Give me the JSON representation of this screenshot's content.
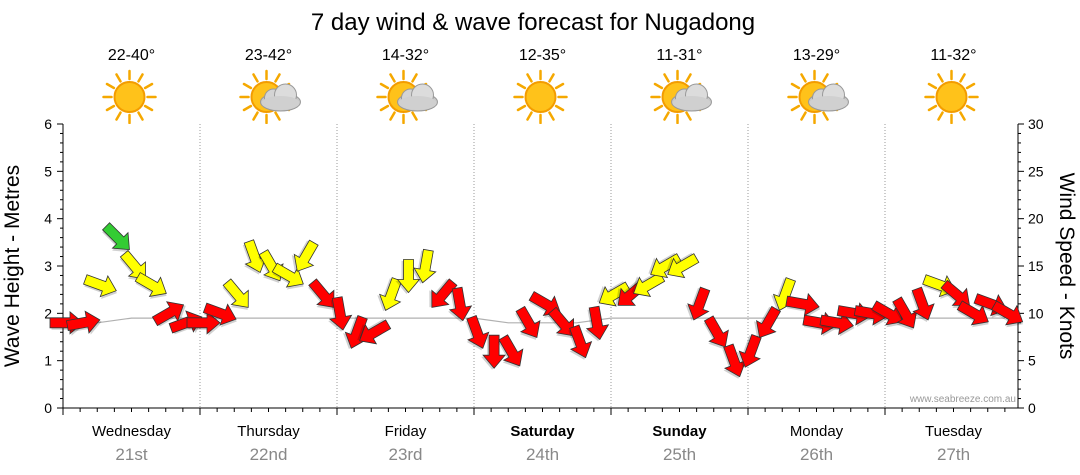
{
  "chart_data": {
    "type": "wind-wave-forecast",
    "title": "7 day wind & wave forecast for Nugadong",
    "ylabel_left": "Wave Height - Metres",
    "ylabel_right": "Wind Speed - Knots",
    "y_left_range": [
      0,
      6
    ],
    "y_left_ticks": [
      "0",
      "1",
      "2",
      "3",
      "4",
      "5",
      "6"
    ],
    "y_right_range": [
      0,
      30
    ],
    "y_right_ticks": [
      "0",
      "5",
      "10",
      "15",
      "20",
      "25",
      "30"
    ],
    "watermark": "www.seabreeze.com.au",
    "grid": "dotted",
    "days": [
      {
        "day": "Wednesday",
        "date": "21st",
        "temp": "22-40°",
        "weather": "sunny",
        "bold": false
      },
      {
        "day": "Thursday",
        "date": "22nd",
        "temp": "23-42°",
        "weather": "partly-cloudy",
        "bold": false
      },
      {
        "day": "Friday",
        "date": "23rd",
        "temp": "14-32°",
        "weather": "partly-cloudy",
        "bold": false
      },
      {
        "day": "Saturday",
        "date": "24th",
        "temp": "12-35°",
        "weather": "sunny",
        "bold": true
      },
      {
        "day": "Sunday",
        "date": "25th",
        "temp": "11-31°",
        "weather": "partly-cloudy",
        "bold": true
      },
      {
        "day": "Monday",
        "date": "26th",
        "temp": "13-29°",
        "weather": "partly-cloudy",
        "bold": false
      },
      {
        "day": "Tuesday",
        "date": "27th",
        "temp": "11-32°",
        "weather": "sunny",
        "bold": false
      }
    ],
    "wind_colors": {
      "light": "#33cc33",
      "moderate": "#ffff00",
      "strong": "#ff0000"
    },
    "wind_series": {
      "name": "Wind",
      "x_hours": [
        0,
        3,
        6,
        9,
        12,
        15,
        18,
        21,
        24,
        27,
        30,
        33,
        36,
        39,
        42,
        45,
        48,
        51,
        54,
        57,
        60,
        63,
        66,
        69,
        72,
        75,
        78,
        81,
        84,
        87,
        90,
        93,
        96,
        99,
        102,
        105,
        108,
        111,
        114,
        117,
        120,
        123,
        126,
        129,
        132,
        135,
        138,
        141,
        144,
        147,
        150,
        153,
        156,
        159,
        162,
        165
      ],
      "knots": [
        9,
        9,
        13,
        18,
        15,
        13,
        10,
        9,
        9,
        10,
        12,
        16,
        15,
        14,
        16,
        12,
        10,
        8,
        8,
        12,
        14,
        15,
        12,
        11,
        8,
        6,
        6,
        9,
        11,
        9,
        7,
        9,
        12,
        12,
        13,
        15,
        15,
        11,
        8,
        5,
        6,
        9,
        12,
        11,
        9,
        9,
        10,
        10,
        10,
        10,
        11,
        13,
        12,
        10,
        11,
        10
      ],
      "color": [
        "strong",
        "strong",
        "moderate",
        "light",
        "moderate",
        "moderate",
        "strong",
        "strong",
        "strong",
        "strong",
        "moderate",
        "moderate",
        "moderate",
        "moderate",
        "moderate",
        "strong",
        "strong",
        "strong",
        "strong",
        "moderate",
        "moderate",
        "moderate",
        "strong",
        "strong",
        "strong",
        "strong",
        "strong",
        "strong",
        "strong",
        "strong",
        "strong",
        "strong",
        "moderate",
        "strong",
        "moderate",
        "moderate",
        "moderate",
        "strong",
        "strong",
        "strong",
        "strong",
        "strong",
        "moderate",
        "strong",
        "strong",
        "strong",
        "strong",
        "strong",
        "strong",
        "strong",
        "strong",
        "moderate",
        "strong",
        "strong",
        "strong",
        "strong"
      ],
      "direction_deg": [
        90,
        80,
        110,
        135,
        140,
        120,
        60,
        70,
        90,
        110,
        140,
        160,
        150,
        120,
        210,
        140,
        170,
        200,
        240,
        200,
        180,
        190,
        220,
        170,
        160,
        180,
        150,
        150,
        120,
        140,
        160,
        170,
        240,
        230,
        240,
        240,
        240,
        200,
        150,
        160,
        200,
        210,
        200,
        100,
        100,
        100,
        100,
        100,
        120,
        150,
        160,
        110,
        130,
        120,
        110,
        120
      ]
    },
    "wave_series": {
      "name": "Wave Height",
      "x_hours": [
        0,
        6,
        12,
        18,
        24,
        30,
        36,
        42,
        48,
        54,
        60,
        66,
        72,
        78,
        84,
        90,
        96,
        102,
        108,
        114,
        120,
        126,
        132,
        138,
        144,
        150,
        156,
        162,
        165
      ],
      "metres": [
        1.8,
        1.8,
        1.9,
        1.9,
        1.9,
        1.9,
        1.9,
        1.9,
        1.9,
        1.9,
        1.9,
        1.9,
        1.9,
        1.8,
        1.8,
        1.8,
        1.9,
        1.9,
        1.9,
        1.9,
        1.9,
        1.9,
        1.9,
        1.9,
        1.9,
        1.9,
        1.9,
        1.9,
        1.9
      ]
    }
  }
}
